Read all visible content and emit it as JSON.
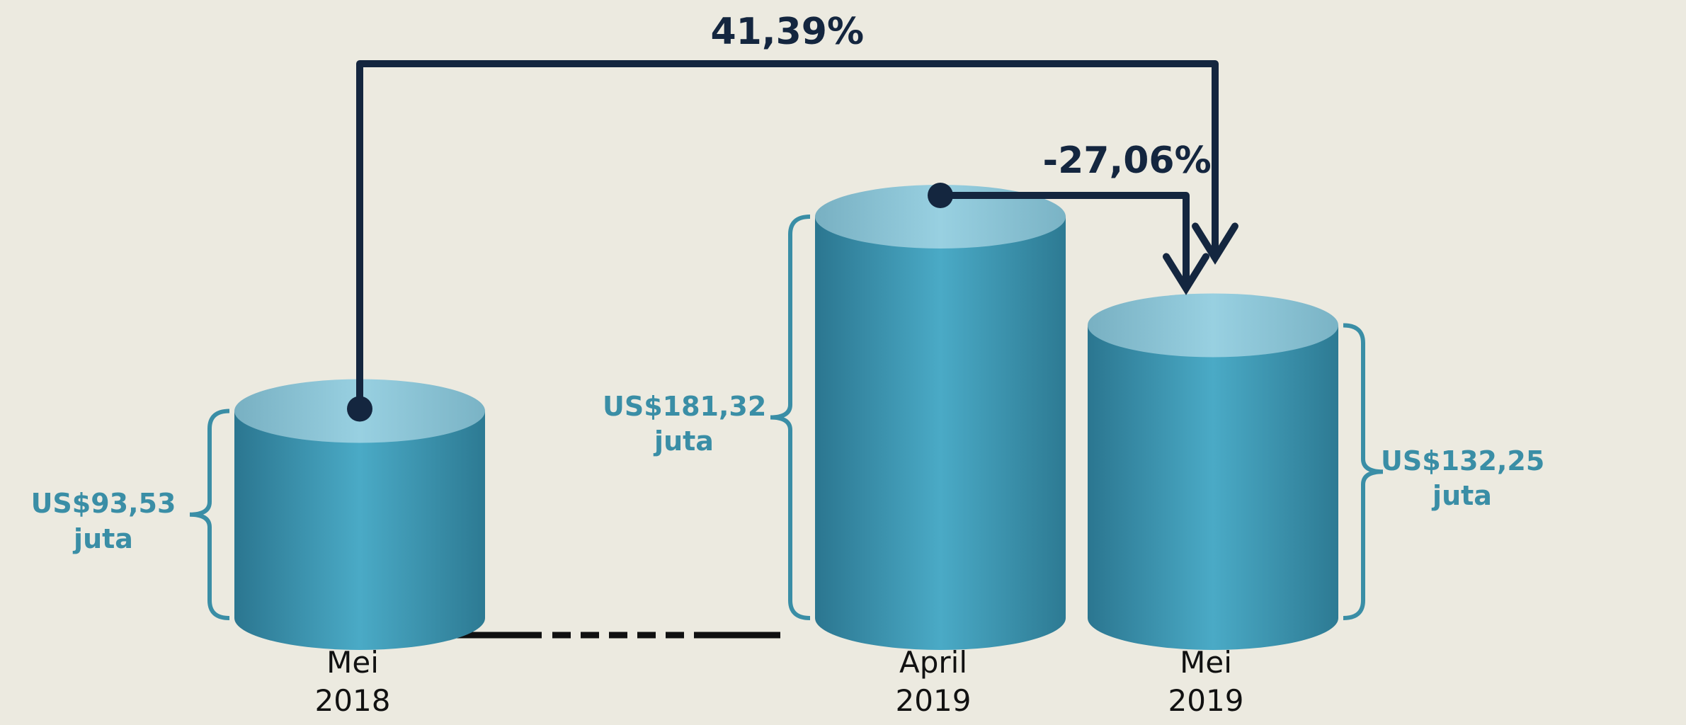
{
  "chart_data": {
    "type": "cylinder",
    "categories": [
      "Mei 2018",
      "April 2019",
      "Mei 2019"
    ],
    "values": [
      93.53,
      181.32,
      132.25
    ],
    "value_labels": [
      "US$93,53 juta",
      "US$181,32 juta",
      "US$132,25 juta"
    ],
    "annotations": [
      "41,39%",
      "-27,06%"
    ],
    "color": "#4aaac6"
  }
}
